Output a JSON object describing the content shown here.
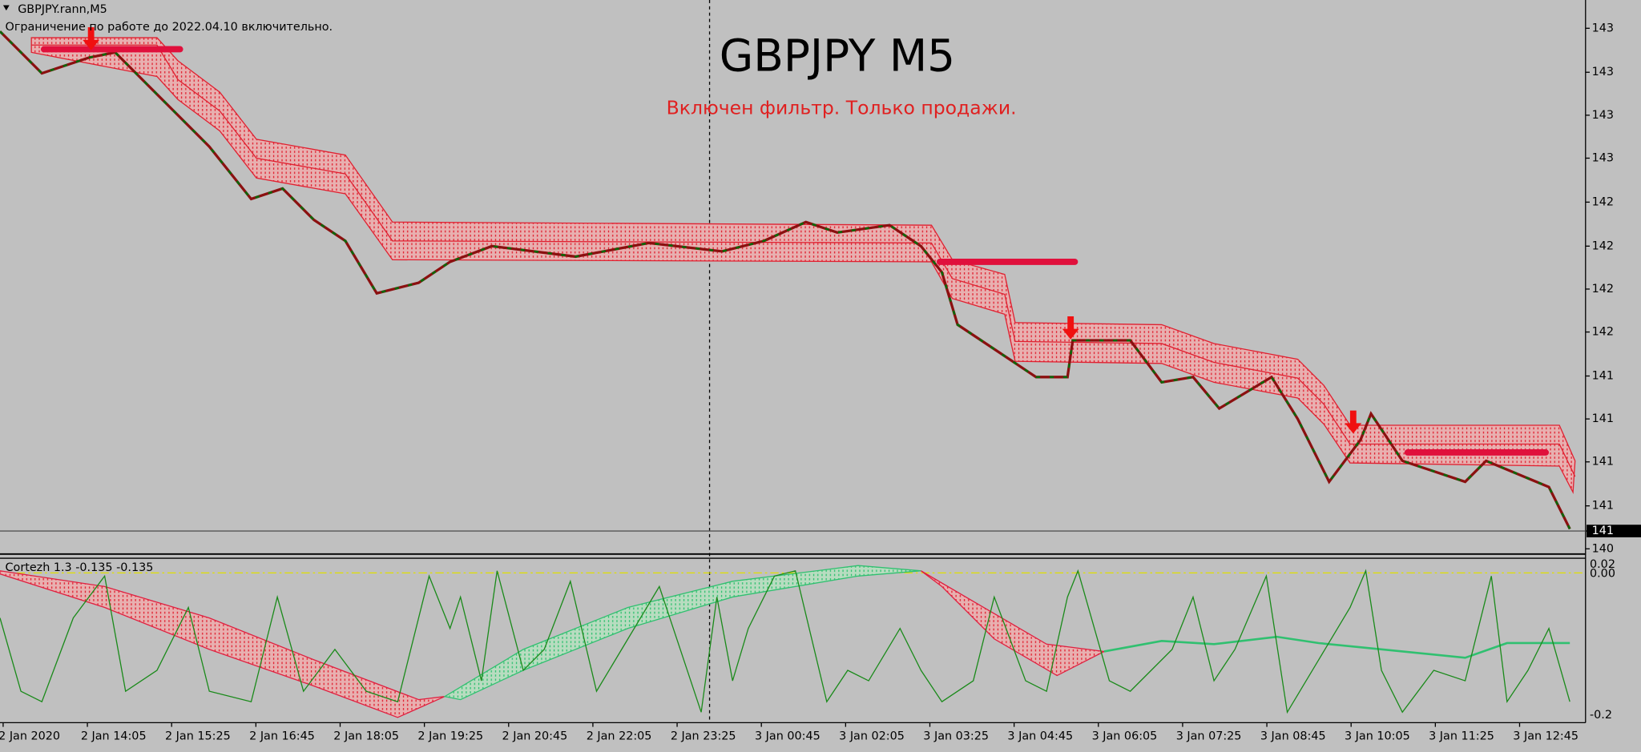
{
  "window": {
    "symbol_label": "GBPJPY.rann,M5",
    "note": "Ограничение по работе до 2022.04.10 включительно."
  },
  "chart": {
    "title": "GBPJPY M5",
    "subtitle": "Включен фильтр. Только продажи.",
    "price_labels": [
      "143",
      "143",
      "143",
      "143",
      "142",
      "142",
      "142",
      "142",
      "141",
      "141",
      "141",
      "141",
      "141",
      "140"
    ],
    "indicator_label": "Cortezh 1.3 -0.135 -0.135",
    "indicator_axis_labels": [
      "0.02",
      "0.00",
      "-0.2"
    ],
    "time_labels": [
      "2 Jan 2020",
      "2 Jan 14:05",
      "2 Jan 15:25",
      "2 Jan 16:45",
      "2 Jan 18:05",
      "2 Jan 19:25",
      "2 Jan 20:45",
      "2 Jan 22:05",
      "2 Jan 23:25",
      "3 Jan 00:45",
      "3 Jan 02:05",
      "3 Jan 03:25",
      "3 Jan 04:45",
      "3 Jan 06:05",
      "3 Jan 07:25",
      "3 Jan 08:45",
      "3 Jan 10:05",
      "3 Jan 11:25",
      "3 Jan 12:45"
    ]
  }
}
